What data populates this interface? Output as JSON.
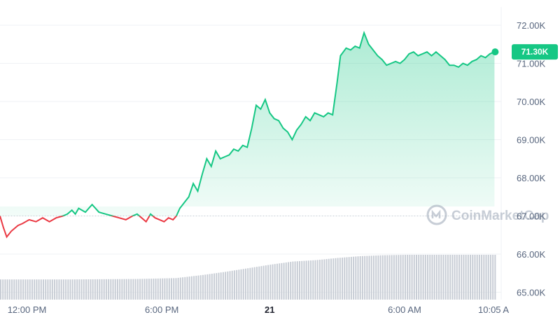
{
  "chart_data": {
    "type": "area",
    "title": "",
    "xlabel": "",
    "ylabel": "",
    "ylim": [
      64.8,
      72.4
    ],
    "y_ticks": [
      "72.00K",
      "71.00K",
      "70.00K",
      "69.00K",
      "68.00K",
      "67.00K",
      "66.00K",
      "65.00K"
    ],
    "y_tick_values": [
      72,
      71,
      70,
      69,
      68,
      67,
      66,
      65
    ],
    "x_tick_labels": [
      {
        "label": "12:00 PM",
        "t": 1.2,
        "bold": false
      },
      {
        "label": "6:00 PM",
        "t": 7.2,
        "bold": false
      },
      {
        "label": "21",
        "t": 12.0,
        "bold": true
      },
      {
        "label": "6:00 AM",
        "t": 18.0,
        "bold": false
      },
      {
        "label": "10:05 A",
        "t": 22.05,
        "bold": false
      }
    ],
    "x_unit": "hours since left edge",
    "xlim": [
      0,
      22.3
    ],
    "baseline_value": 67.0,
    "price_points": [
      [
        0.0,
        67.0
      ],
      [
        0.15,
        66.7
      ],
      [
        0.3,
        66.45
      ],
      [
        0.5,
        66.6
      ],
      [
        0.8,
        66.75
      ],
      [
        1.0,
        66.8
      ],
      [
        1.3,
        66.9
      ],
      [
        1.6,
        66.85
      ],
      [
        1.9,
        66.95
      ],
      [
        2.2,
        66.85
      ],
      [
        2.5,
        66.95
      ],
      [
        2.8,
        67.0
      ],
      [
        3.0,
        67.05
      ],
      [
        3.2,
        67.15
      ],
      [
        3.35,
        67.05
      ],
      [
        3.5,
        67.2
      ],
      [
        3.8,
        67.1
      ],
      [
        4.1,
        67.3
      ],
      [
        4.4,
        67.1
      ],
      [
        4.7,
        67.05
      ],
      [
        5.0,
        67.0
      ],
      [
        5.3,
        66.95
      ],
      [
        5.6,
        66.9
      ],
      [
        5.9,
        67.0
      ],
      [
        6.1,
        67.05
      ],
      [
        6.3,
        66.95
      ],
      [
        6.5,
        66.85
      ],
      [
        6.7,
        67.05
      ],
      [
        6.9,
        66.95
      ],
      [
        7.1,
        66.9
      ],
      [
        7.3,
        66.85
      ],
      [
        7.5,
        66.95
      ],
      [
        7.7,
        66.9
      ],
      [
        7.85,
        67.0
      ],
      [
        8.0,
        67.2
      ],
      [
        8.2,
        67.35
      ],
      [
        8.4,
        67.5
      ],
      [
        8.6,
        67.85
      ],
      [
        8.8,
        67.65
      ],
      [
        9.0,
        68.1
      ],
      [
        9.2,
        68.5
      ],
      [
        9.4,
        68.3
      ],
      [
        9.6,
        68.7
      ],
      [
        9.8,
        68.5
      ],
      [
        10.0,
        68.55
      ],
      [
        10.2,
        68.6
      ],
      [
        10.4,
        68.75
      ],
      [
        10.6,
        68.7
      ],
      [
        10.8,
        68.85
      ],
      [
        11.0,
        68.8
      ],
      [
        11.2,
        69.3
      ],
      [
        11.4,
        69.9
      ],
      [
        11.6,
        69.8
      ],
      [
        11.8,
        70.05
      ],
      [
        12.0,
        69.7
      ],
      [
        12.2,
        69.55
      ],
      [
        12.4,
        69.5
      ],
      [
        12.6,
        69.3
      ],
      [
        12.8,
        69.2
      ],
      [
        13.0,
        69.0
      ],
      [
        13.2,
        69.25
      ],
      [
        13.4,
        69.4
      ],
      [
        13.6,
        69.6
      ],
      [
        13.8,
        69.5
      ],
      [
        14.0,
        69.7
      ],
      [
        14.2,
        69.65
      ],
      [
        14.4,
        69.6
      ],
      [
        14.6,
        69.7
      ],
      [
        14.8,
        69.65
      ],
      [
        15.0,
        70.5
      ],
      [
        15.15,
        71.2
      ],
      [
        15.4,
        71.4
      ],
      [
        15.6,
        71.35
      ],
      [
        15.8,
        71.45
      ],
      [
        16.0,
        71.4
      ],
      [
        16.2,
        71.8
      ],
      [
        16.4,
        71.5
      ],
      [
        16.6,
        71.35
      ],
      [
        16.8,
        71.2
      ],
      [
        17.0,
        71.1
      ],
      [
        17.2,
        70.95
      ],
      [
        17.4,
        71.0
      ],
      [
        17.6,
        71.05
      ],
      [
        17.8,
        71.0
      ],
      [
        18.0,
        71.1
      ],
      [
        18.2,
        71.25
      ],
      [
        18.4,
        71.3
      ],
      [
        18.6,
        71.2
      ],
      [
        18.8,
        71.25
      ],
      [
        19.0,
        71.3
      ],
      [
        19.2,
        71.2
      ],
      [
        19.4,
        71.3
      ],
      [
        19.6,
        71.2
      ],
      [
        19.8,
        71.1
      ],
      [
        20.0,
        70.95
      ],
      [
        20.2,
        70.95
      ],
      [
        20.4,
        70.9
      ],
      [
        20.6,
        71.0
      ],
      [
        20.8,
        70.95
      ],
      [
        21.0,
        71.05
      ],
      [
        21.2,
        71.1
      ],
      [
        21.4,
        71.2
      ],
      [
        21.6,
        71.15
      ],
      [
        21.8,
        71.25
      ],
      [
        22.0,
        71.3
      ]
    ],
    "volume_profile": [
      [
        0.0,
        0.45
      ],
      [
        3.0,
        0.45
      ],
      [
        6.0,
        0.46
      ],
      [
        7.8,
        0.48
      ],
      [
        9.0,
        0.55
      ],
      [
        10.0,
        0.62
      ],
      [
        11.0,
        0.7
      ],
      [
        12.0,
        0.78
      ],
      [
        13.0,
        0.85
      ],
      [
        14.0,
        0.88
      ],
      [
        15.0,
        0.93
      ],
      [
        16.0,
        0.97
      ],
      [
        17.0,
        0.99
      ],
      [
        18.0,
        1.0
      ],
      [
        22.1,
        1.0
      ]
    ],
    "current_value_label": "71.30K",
    "colors": {
      "up": "#16c784",
      "down": "#ea3943",
      "badge": "#16c784",
      "grid": "#eff2f5",
      "volume": "#c8cdd5"
    }
  },
  "watermark": {
    "text": "CoinMarketCap",
    "icon": "coinmarketcap-logo-icon"
  }
}
